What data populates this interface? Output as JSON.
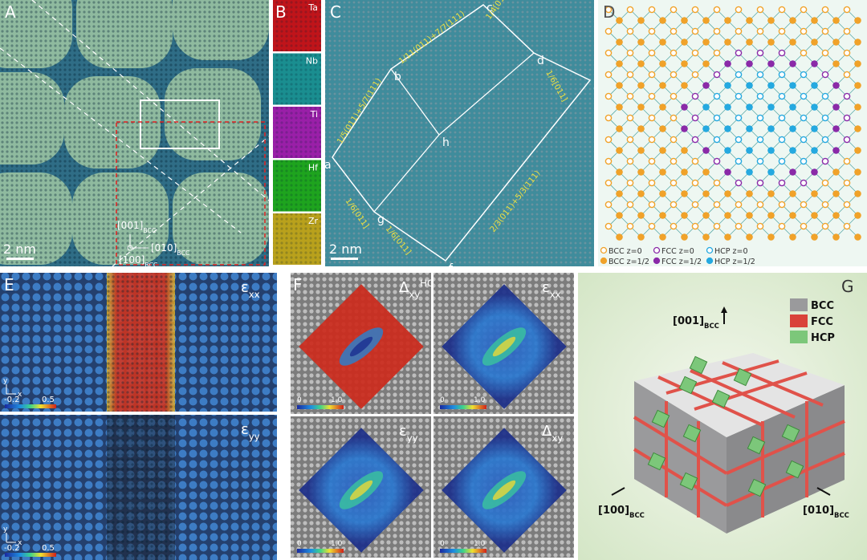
{
  "panel_a": {
    "label": "A",
    "scale_bar": "2 nm",
    "directions": [
      {
        "text": "[001]",
        "sub": "BCC"
      },
      {
        "text": "[010]",
        "sub": "BCC"
      },
      {
        "text": "[100]",
        "sub": "BCC"
      }
    ]
  },
  "panel_b": {
    "label": "B",
    "elements": [
      "Ta",
      "Nb",
      "Ti",
      "Hf",
      "Zr"
    ]
  },
  "panel_c": {
    "label": "C",
    "scale_bar": "2 nm",
    "points": [
      "a",
      "b",
      "c",
      "d",
      "e",
      "f",
      "g",
      "h"
    ],
    "annotations": [
      "1/6[011]",
      "1/5(011)+5/7(111)",
      "1/11(011)+7/7(111)",
      "1/4[011]",
      "1/6[011]",
      "1/6[011]",
      "2/3(011)+5/3(111)"
    ]
  },
  "panel_d": {
    "label": "D",
    "legend": [
      "BCC z=0",
      "FCC z=0",
      "HCP z=0",
      "BCC z=1/2",
      "FCC z=1/2",
      "HCP z=1/2"
    ]
  },
  "panel_e": {
    "label": "E",
    "maps": [
      {
        "symbol": "ε",
        "sub": "xx"
      },
      {
        "symbol": "ε",
        "sub": "yy"
      }
    ],
    "colorbar": [
      "-0.2",
      "0.5"
    ],
    "axes": [
      "y",
      "x"
    ]
  },
  "panel_f": {
    "label": "F",
    "maps": [
      {
        "symbol": "Δ",
        "sub": "xy",
        "sup": "HCP"
      },
      {
        "symbol": "ε",
        "sub": "xx"
      },
      {
        "symbol": "ε",
        "sub": "yy"
      },
      {
        "symbol": "Δ",
        "sub": "xy"
      }
    ],
    "colorbar": [
      "0",
      "1.0"
    ]
  },
  "panel_g": {
    "label": "G",
    "directions": [
      {
        "text": "[001]",
        "sub": "BCC"
      },
      {
        "text": "[100]",
        "sub": "BCC"
      },
      {
        "text": "[010]",
        "sub": "BCC"
      }
    ],
    "legend": [
      "BCC",
      "FCC",
      "HCP"
    ]
  }
}
